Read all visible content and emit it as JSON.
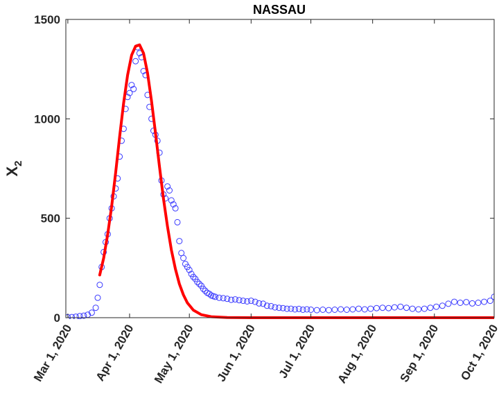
{
  "chart_data": {
    "type": "scatter",
    "title": "NASSAU",
    "ylabel": "X",
    "ylabel_subscript": "2",
    "xlabel": "",
    "xlim": [
      "2020-02-29",
      "2020-10-01"
    ],
    "ylim": [
      0,
      1500
    ],
    "yticks": [
      0,
      500,
      1000,
      1500
    ],
    "xticks": [
      {
        "date": "2020-03-01",
        "label": "Mar 1, 2020"
      },
      {
        "date": "2020-04-01",
        "label": "Apr 1, 2020"
      },
      {
        "date": "2020-05-01",
        "label": "May 1, 2020"
      },
      {
        "date": "2020-06-01",
        "label": "Jun 1, 2020"
      },
      {
        "date": "2020-07-01",
        "label": "Jul 1, 2020"
      },
      {
        "date": "2020-08-01",
        "label": "Aug 1, 2020"
      },
      {
        "date": "2020-09-01",
        "label": "Sep 1, 2020"
      },
      {
        "date": "2020-10-01",
        "label": "Oct 1, 2020"
      }
    ],
    "grid": false,
    "series": [
      {
        "kind": "scatter",
        "marker": "circle",
        "color": "#3a3aff",
        "points": [
          [
            "2020-03-01",
            2
          ],
          [
            "2020-03-03",
            3
          ],
          [
            "2020-03-05",
            5
          ],
          [
            "2020-03-07",
            8
          ],
          [
            "2020-03-09",
            10
          ],
          [
            "2020-03-11",
            15
          ],
          [
            "2020-03-13",
            25
          ],
          [
            "2020-03-15",
            50
          ],
          [
            "2020-03-16",
            100
          ],
          [
            "2020-03-17",
            165
          ],
          [
            "2020-03-18",
            255
          ],
          [
            "2020-03-19",
            330
          ],
          [
            "2020-03-20",
            380
          ],
          [
            "2020-03-21",
            420
          ],
          [
            "2020-03-22",
            500
          ],
          [
            "2020-03-23",
            550
          ],
          [
            "2020-03-24",
            610
          ],
          [
            "2020-03-25",
            650
          ],
          [
            "2020-03-26",
            700
          ],
          [
            "2020-03-27",
            810
          ],
          [
            "2020-03-28",
            890
          ],
          [
            "2020-03-29",
            950
          ],
          [
            "2020-03-30",
            1050
          ],
          [
            "2020-03-31",
            1110
          ],
          [
            "2020-04-01",
            1130
          ],
          [
            "2020-04-02",
            1170
          ],
          [
            "2020-04-03",
            1150
          ],
          [
            "2020-04-04",
            1290
          ],
          [
            "2020-04-05",
            1360
          ],
          [
            "2020-04-06",
            1330
          ],
          [
            "2020-04-07",
            1310
          ],
          [
            "2020-04-08",
            1240
          ],
          [
            "2020-04-09",
            1220
          ],
          [
            "2020-04-10",
            1120
          ],
          [
            "2020-04-11",
            1060
          ],
          [
            "2020-04-12",
            1000
          ],
          [
            "2020-04-13",
            940
          ],
          [
            "2020-04-14",
            920
          ],
          [
            "2020-04-15",
            890
          ],
          [
            "2020-04-16",
            830
          ],
          [
            "2020-04-17",
            690
          ],
          [
            "2020-04-18",
            620
          ],
          [
            "2020-04-19",
            600
          ],
          [
            "2020-04-20",
            660
          ],
          [
            "2020-04-21",
            640
          ],
          [
            "2020-04-22",
            590
          ],
          [
            "2020-04-23",
            570
          ],
          [
            "2020-04-24",
            550
          ],
          [
            "2020-04-25",
            480
          ],
          [
            "2020-04-26",
            385
          ],
          [
            "2020-04-27",
            325
          ],
          [
            "2020-04-28",
            300
          ],
          [
            "2020-04-29",
            270
          ],
          [
            "2020-04-30",
            255
          ],
          [
            "2020-05-01",
            240
          ],
          [
            "2020-05-02",
            220
          ],
          [
            "2020-05-03",
            205
          ],
          [
            "2020-05-04",
            195
          ],
          [
            "2020-05-05",
            180
          ],
          [
            "2020-05-06",
            170
          ],
          [
            "2020-05-07",
            160
          ],
          [
            "2020-05-08",
            145
          ],
          [
            "2020-05-09",
            135
          ],
          [
            "2020-05-10",
            125
          ],
          [
            "2020-05-11",
            120
          ],
          [
            "2020-05-12",
            112
          ],
          [
            "2020-05-13",
            108
          ],
          [
            "2020-05-14",
            105
          ],
          [
            "2020-05-16",
            100
          ],
          [
            "2020-05-18",
            98
          ],
          [
            "2020-05-20",
            95
          ],
          [
            "2020-05-22",
            90
          ],
          [
            "2020-05-24",
            92
          ],
          [
            "2020-05-26",
            88
          ],
          [
            "2020-05-28",
            85
          ],
          [
            "2020-05-30",
            82
          ],
          [
            "2020-06-01",
            85
          ],
          [
            "2020-06-03",
            80
          ],
          [
            "2020-06-05",
            72
          ],
          [
            "2020-06-07",
            70
          ],
          [
            "2020-06-09",
            60
          ],
          [
            "2020-06-11",
            58
          ],
          [
            "2020-06-13",
            52
          ],
          [
            "2020-06-15",
            50
          ],
          [
            "2020-06-17",
            48
          ],
          [
            "2020-06-19",
            45
          ],
          [
            "2020-06-21",
            45
          ],
          [
            "2020-06-23",
            42
          ],
          [
            "2020-06-25",
            44
          ],
          [
            "2020-06-27",
            40
          ],
          [
            "2020-06-29",
            42
          ],
          [
            "2020-07-01",
            40
          ],
          [
            "2020-07-04",
            38
          ],
          [
            "2020-07-07",
            40
          ],
          [
            "2020-07-10",
            38
          ],
          [
            "2020-07-13",
            40
          ],
          [
            "2020-07-16",
            42
          ],
          [
            "2020-07-19",
            40
          ],
          [
            "2020-07-22",
            42
          ],
          [
            "2020-07-25",
            45
          ],
          [
            "2020-07-28",
            42
          ],
          [
            "2020-07-31",
            45
          ],
          [
            "2020-08-03",
            48
          ],
          [
            "2020-08-06",
            50
          ],
          [
            "2020-08-09",
            48
          ],
          [
            "2020-08-12",
            52
          ],
          [
            "2020-08-15",
            55
          ],
          [
            "2020-08-18",
            50
          ],
          [
            "2020-08-21",
            45
          ],
          [
            "2020-08-24",
            42
          ],
          [
            "2020-08-27",
            45
          ],
          [
            "2020-08-30",
            50
          ],
          [
            "2020-09-02",
            55
          ],
          [
            "2020-09-05",
            60
          ],
          [
            "2020-09-08",
            70
          ],
          [
            "2020-09-11",
            80
          ],
          [
            "2020-09-14",
            75
          ],
          [
            "2020-09-17",
            78
          ],
          [
            "2020-09-20",
            72
          ],
          [
            "2020-09-23",
            75
          ],
          [
            "2020-09-26",
            80
          ],
          [
            "2020-09-29",
            85
          ],
          [
            "2020-10-01",
            105
          ]
        ]
      },
      {
        "kind": "line",
        "color": "#ff0000",
        "points": [
          [
            "2020-03-17",
            215
          ],
          [
            "2020-03-19",
            300
          ],
          [
            "2020-03-21",
            420
          ],
          [
            "2020-03-23",
            560
          ],
          [
            "2020-03-25",
            730
          ],
          [
            "2020-03-27",
            910
          ],
          [
            "2020-03-29",
            1080
          ],
          [
            "2020-03-31",
            1220
          ],
          [
            "2020-04-02",
            1320
          ],
          [
            "2020-04-04",
            1365
          ],
          [
            "2020-04-06",
            1372
          ],
          [
            "2020-04-08",
            1330
          ],
          [
            "2020-04-10",
            1230
          ],
          [
            "2020-04-12",
            1090
          ],
          [
            "2020-04-14",
            930
          ],
          [
            "2020-04-16",
            760
          ],
          [
            "2020-04-18",
            600
          ],
          [
            "2020-04-20",
            460
          ],
          [
            "2020-04-22",
            340
          ],
          [
            "2020-04-24",
            245
          ],
          [
            "2020-04-26",
            170
          ],
          [
            "2020-04-28",
            115
          ],
          [
            "2020-04-30",
            75
          ],
          [
            "2020-05-03",
            38
          ],
          [
            "2020-05-07",
            15
          ],
          [
            "2020-05-12",
            5
          ],
          [
            "2020-05-20",
            1
          ],
          [
            "2020-06-01",
            0
          ],
          [
            "2020-07-01",
            0
          ],
          [
            "2020-08-01",
            0
          ],
          [
            "2020-09-01",
            0
          ],
          [
            "2020-10-01",
            0
          ]
        ]
      }
    ]
  }
}
